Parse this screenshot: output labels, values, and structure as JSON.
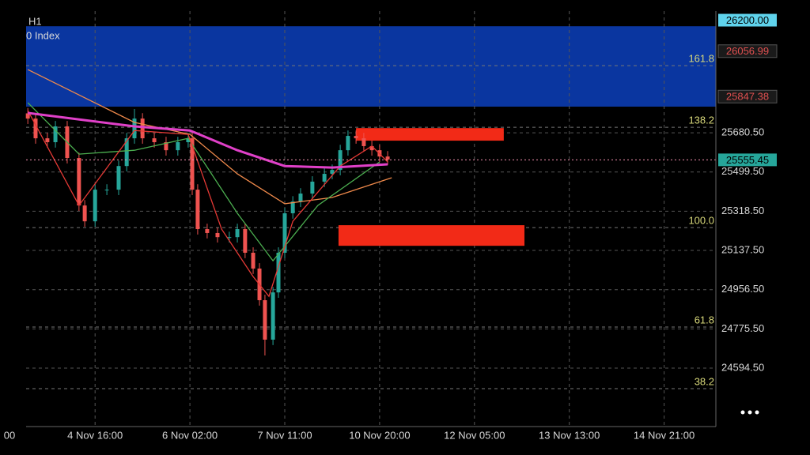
{
  "chart_data": {
    "type": "candlestick",
    "timeframe": "H1",
    "title": "0 Index",
    "grid": true,
    "up_color": "#26a69a",
    "down_color": "#ef5350",
    "xlim": [
      9,
      249
    ],
    "ylim": [
      24325,
      26242
    ],
    "xticks": [
      {
        "value": 0,
        "label": "00"
      },
      {
        "value": 33,
        "label": "4 Nov 16:00"
      },
      {
        "value": 66,
        "label": "6 Nov 02:00"
      },
      {
        "value": 99,
        "label": "7 Nov 11:00"
      },
      {
        "value": 132,
        "label": "10 Nov 20:00"
      },
      {
        "value": 165,
        "label": "12 Nov 05:00"
      },
      {
        "value": 198,
        "label": "13 Nov 13:00"
      },
      {
        "value": 231,
        "label": "14 Nov 21:00"
      }
    ],
    "yticks": [
      {
        "value": 25680.5,
        "label": "25680.50"
      },
      {
        "value": 25499.5,
        "label": "25499.50"
      },
      {
        "value": 25318.5,
        "label": "25318.50"
      },
      {
        "value": 25137.5,
        "label": "25137.50"
      },
      {
        "value": 24956.5,
        "label": "24956.50"
      },
      {
        "value": 24775.5,
        "label": "24775.50"
      },
      {
        "value": 24594.5,
        "label": "24594.50"
      }
    ],
    "x": [
      9.6,
      12.3,
      16.4,
      19.2,
      23.3,
      27.4,
      29.4,
      33,
      37.1,
      41.2,
      44,
      46.7,
      49.5,
      53.6,
      57.7,
      61.8,
      65.4,
      66.8,
      68.7,
      72,
      75.6,
      79.7,
      82.5,
      85.2,
      88,
      90.2,
      92.1,
      94.9,
      96.8,
      99,
      101.8,
      104.5,
      108.6,
      112.8,
      115.5,
      118.3,
      121,
      123.8,
      126.5,
      129.3,
      132,
      134.8
    ],
    "open": [
      25770,
      25746,
      25655,
      25637,
      25710,
      25564,
      25345,
      25272,
      25418,
      25418,
      25527,
      25655,
      25746,
      25655,
      25637,
      25600,
      25637,
      25655,
      25418,
      25236,
      25218,
      25199,
      25199,
      25236,
      25127,
      25054,
      24908,
      24726,
      24944,
      25127,
      25309,
      25363,
      25400,
      25455,
      25491,
      25509,
      25600,
      25666,
      25655,
      25619,
      25600,
      25571
    ],
    "high": [
      25795,
      25771,
      25680,
      25735,
      25735,
      25589,
      25370,
      25443,
      25443,
      25552,
      25680,
      25790,
      25771,
      25680,
      25662,
      25662,
      25680,
      25680,
      25443,
      25261,
      25243,
      25224,
      25261,
      25261,
      25152,
      25079,
      24933,
      24969,
      25152,
      25334,
      25388,
      25425,
      25480,
      25516,
      25534,
      25625,
      25691,
      25691,
      25680,
      25644,
      25625,
      25596
    ],
    "low": [
      25721,
      25630,
      25612,
      25612,
      25539,
      25320,
      25247,
      25247,
      25393,
      25393,
      25502,
      25630,
      25630,
      25612,
      25575,
      25575,
      25612,
      25393,
      25211,
      25193,
      25174,
      25174,
      25174,
      25102,
      25029,
      24883,
      24653,
      24701,
      24919,
      25102,
      25284,
      25338,
      25375,
      25430,
      25466,
      25484,
      25575,
      25630,
      25594,
      25575,
      25546,
      25532
    ],
    "close": [
      25746,
      25655,
      25637,
      25710,
      25564,
      25345,
      25272,
      25418,
      25418,
      25527,
      25655,
      25746,
      25655,
      25637,
      25600,
      25637,
      25655,
      25418,
      25236,
      25218,
      25199,
      25199,
      25236,
      25127,
      25054,
      24908,
      24726,
      24944,
      25127,
      25309,
      25363,
      25400,
      25455,
      25491,
      25509,
      25600,
      25666,
      25655,
      25619,
      25600,
      25571,
      25557
    ],
    "lines": [
      {
        "color": "#f08a4b",
        "x": [
          9.6,
          27.4,
          46.7,
          66,
          82.5,
          99,
          115.5,
          136.2
        ],
        "values": [
          25972,
          25855,
          25728,
          25673,
          25491,
          25353,
          25382,
          25473
        ]
      },
      {
        "color": "#4caf50",
        "x": [
          9.6,
          27.4,
          46.7,
          65.4,
          82.5,
          94.9,
          110.5,
          132
        ],
        "values": [
          25819,
          25582,
          25600,
          25655,
          25309,
          25090,
          25345,
          25546
        ]
      },
      {
        "color": "#e53935",
        "x": [
          9.6,
          27.4,
          46.7,
          65.4,
          77,
          88,
          93.5,
          101.8,
          118.3,
          129.3,
          134.8
        ],
        "values": [
          25783,
          25345,
          25691,
          25673,
          25236,
          25017,
          24926,
          25272,
          25527,
          25619,
          25546
        ]
      },
      {
        "color": "#e040c8",
        "x": [
          9.6,
          46.7,
          66,
          82.5,
          99,
          115.5,
          134.8
        ],
        "values": [
          25772,
          25710,
          25691,
          25600,
          25527,
          25520,
          25535
        ]
      }
    ],
    "zones": [
      {
        "from": 25801,
        "to": 26172,
        "color": "#0a36a0"
      }
    ],
    "boxes": [
      {
        "x": [
          123.8,
          175.2
        ],
        "values": [
          25644,
          25702
        ],
        "color": "#f22a17"
      },
      {
        "x": [
          117.7,
          182.4
        ],
        "values": [
          25159,
          25254
        ],
        "color": "#f22a17"
      }
    ],
    "fib_levels": [
      {
        "label": "161.8",
        "price": 25990
      },
      {
        "label": "138.2",
        "price": 25706
      },
      {
        "label": "100.0",
        "price": 25243
      },
      {
        "label": "61.8",
        "price": 24784
      },
      {
        "label": "38.2",
        "price": 24500
      }
    ],
    "price_markers": [
      {
        "value": 26200,
        "label": "26200.00",
        "color": "#5fd3ec",
        "text_color": "#000000"
      },
      {
        "value": 26056.99,
        "label": "26056.99",
        "color": "#1a1a1a",
        "text_color": "#e05050"
      },
      {
        "value": 25847.38,
        "label": "25847.38",
        "color": "#1a1a1a",
        "text_color": "#e05050"
      },
      {
        "value": 25555.45,
        "label": "25555.45",
        "color": "#26a69a",
        "text_color": "#000000",
        "line_color": "#f48fb1"
      }
    ]
  }
}
